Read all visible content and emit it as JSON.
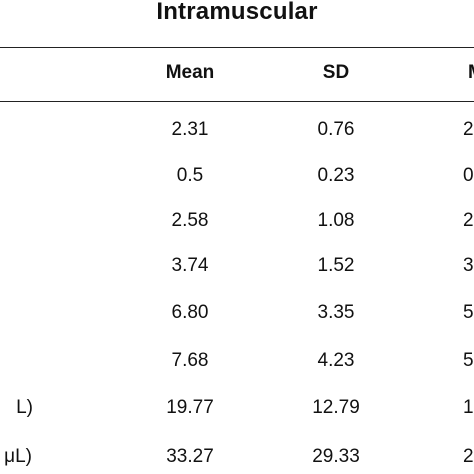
{
  "table": {
    "group_title": "Intramuscular",
    "headers": {
      "mean": "Mean",
      "sd": "SD",
      "clipped": "M"
    },
    "rows": [
      {
        "label": "",
        "mean": "2.31",
        "sd": "0.76",
        "clipped": "2"
      },
      {
        "label": "",
        "mean": "0.5",
        "sd": "0.23",
        "clipped": "0"
      },
      {
        "label": "",
        "mean": "2.58",
        "sd": "1.08",
        "clipped": "2"
      },
      {
        "label": "",
        "mean": "3.74",
        "sd": "1.52",
        "clipped": "3"
      },
      {
        "label": "",
        "mean": "6.80",
        "sd": "3.35",
        "clipped": "5"
      },
      {
        "label": "",
        "mean": "7.68",
        "sd": "4.23",
        "clipped": "5"
      },
      {
        "label": "L)",
        "mean": "19.77",
        "sd": "12.79",
        "clipped": "1"
      },
      {
        "label": "μL)",
        "mean": "33.27",
        "sd": "29.33",
        "clipped": "2"
      }
    ]
  }
}
